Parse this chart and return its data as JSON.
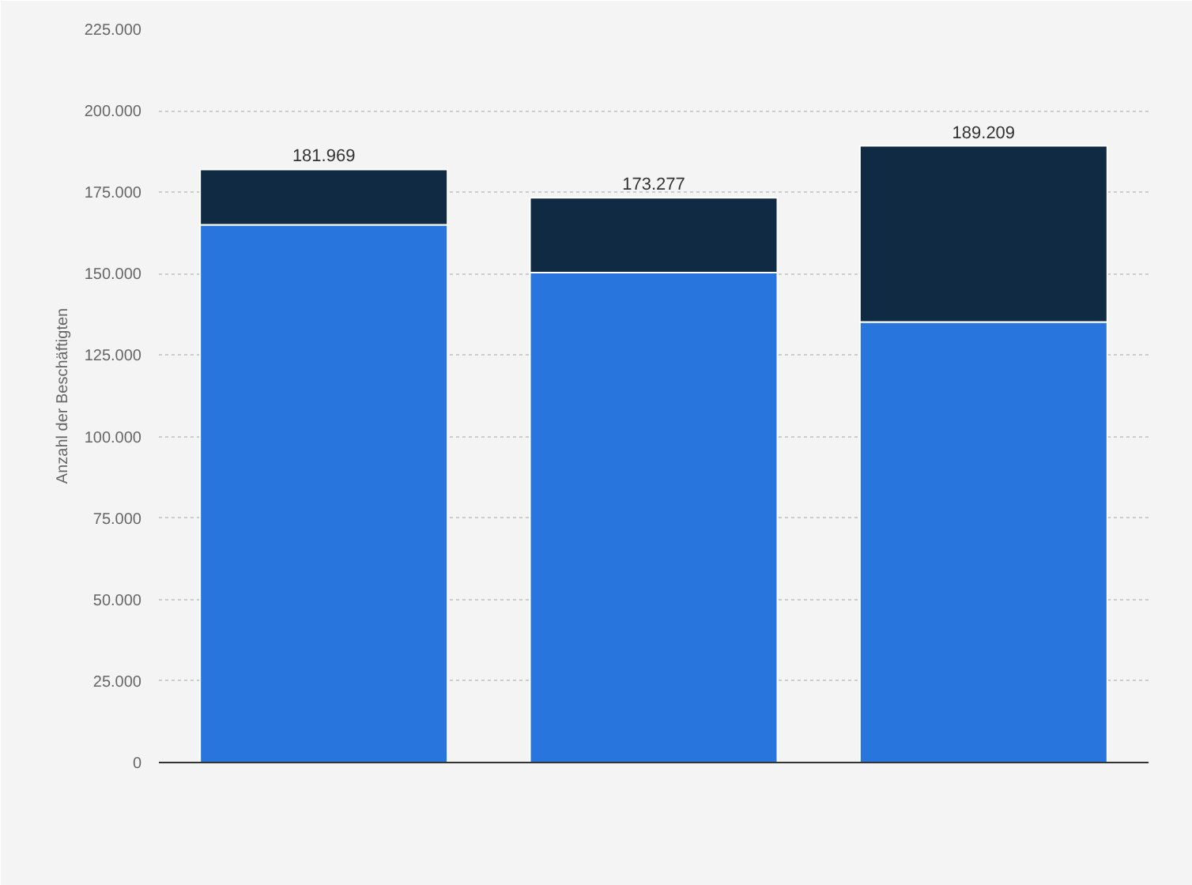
{
  "chart_data": {
    "type": "bar",
    "stacked": true,
    "ylabel": "Anzahl der Beschäftigten",
    "categories": [
      null,
      null,
      null
    ],
    "series": [
      {
        "color": "#2876dd",
        "values": [
          165000,
          150300,
          135200
        ]
      },
      {
        "color": "#0f2a42",
        "values": [
          16969,
          22977,
          54009
        ]
      }
    ],
    "totals": [
      "181.969",
      "173.277",
      "189.209"
    ],
    "ylim": [
      0,
      225000
    ],
    "yticks": [
      {
        "value": 0,
        "label": "0"
      },
      {
        "value": 25000,
        "label": "25.000"
      },
      {
        "value": 50000,
        "label": "50.000"
      },
      {
        "value": 75000,
        "label": "75.000"
      },
      {
        "value": 100000,
        "label": "100.000"
      },
      {
        "value": 125000,
        "label": "125.000"
      },
      {
        "value": 150000,
        "label": "150.000"
      },
      {
        "value": 175000,
        "label": "175.000"
      },
      {
        "value": 200000,
        "label": "200.000"
      },
      {
        "value": 225000,
        "label": "225.000"
      }
    ],
    "grid": "y",
    "tick_labels": "y"
  }
}
